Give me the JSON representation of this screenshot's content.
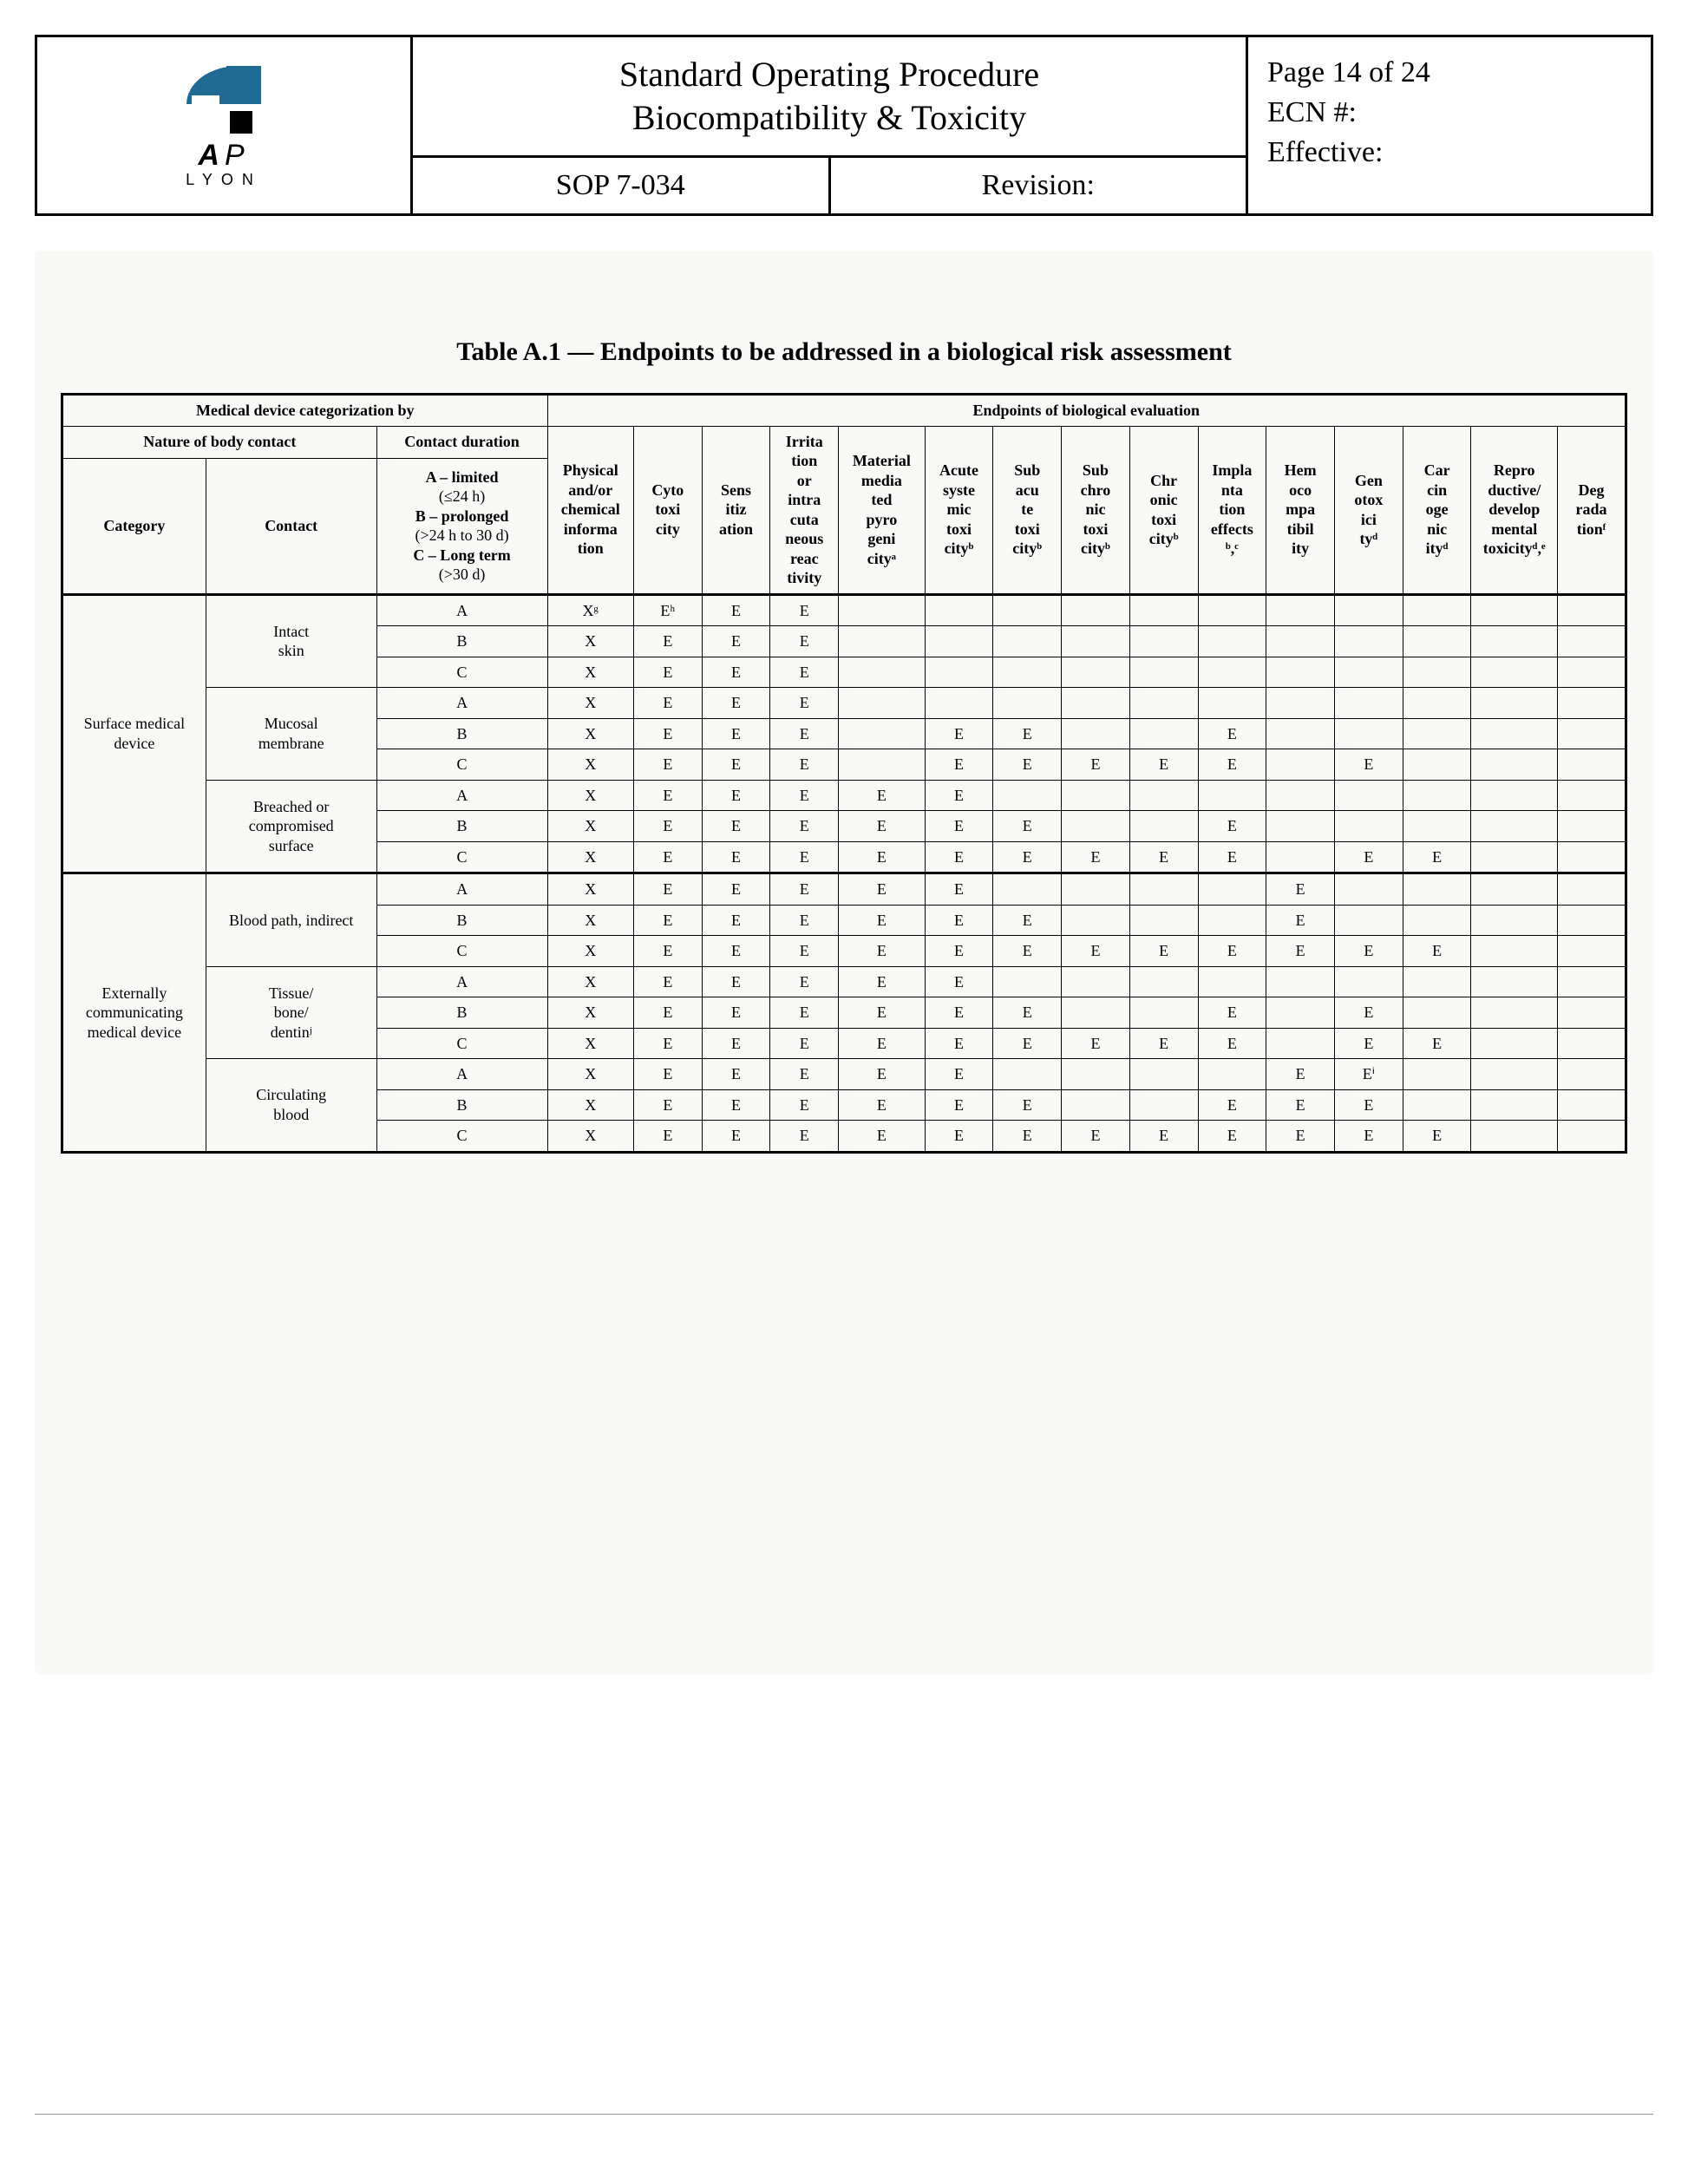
{
  "header": {
    "logo": {
      "ap": "AP",
      "lyon": "LYON"
    },
    "title_line1": "Standard Operating Procedure",
    "title_line2": "Biocompatibility & Toxicity",
    "sop": "SOP 7-034",
    "revision_label": "Revision:",
    "page_label": "Page  14 of 24",
    "ecn_label": "ECN #:",
    "effective_label": "Effective:"
  },
  "table": {
    "title": "Table A.1 — Endpoints to be addressed in a biological risk assessment",
    "head": {
      "medcat": "Medical device categorization by",
      "endpoints": "Endpoints of biological evaluation",
      "nature": "Nature of body contact",
      "duration": "Contact duration",
      "category": "Category",
      "contact": "Contact",
      "dur_a": "A – limited",
      "dur_a_sub": "(≤24 h)",
      "dur_b": "B – prolonged",
      "dur_b_sub": "(>24 h to 30 d)",
      "dur_c": "C – Long term",
      "dur_c_sub": "(>30 d)",
      "ep": [
        "Physical and/or chemical informa tion",
        "Cyto toxi city",
        "Sens itiz ation",
        "Irrita tion or intra cuta neous reac tivity",
        "Material media ted pyro geni cityᵃ",
        "Acute syste mic toxi cityᵇ",
        "Sub acu te toxi cityᵇ",
        "Sub chro nic toxi cityᵇ",
        "Chr onic toxi cityᵇ",
        "Impla nta tion effects ᵇ,ᶜ",
        "Hem oco mpa tibil ity",
        "Gen otox ici tyᵈ",
        "Car cin oge nic ityᵈ",
        "Repro ductive/ develop mental toxicityᵈ,ᵉ",
        "Deg rada tionᶠ"
      ]
    },
    "categories": [
      {
        "name": "Surface medical device",
        "contacts": [
          {
            "name": "Intact skin",
            "rows": [
              {
                "d": "A",
                "v": [
                  "Xᵍ",
                  "Eʰ",
                  "E",
                  "E",
                  "",
                  "",
                  "",
                  "",
                  "",
                  "",
                  "",
                  "",
                  "",
                  "",
                  ""
                ]
              },
              {
                "d": "B",
                "v": [
                  "X",
                  "E",
                  "E",
                  "E",
                  "",
                  "",
                  "",
                  "",
                  "",
                  "",
                  "",
                  "",
                  "",
                  "",
                  ""
                ]
              },
              {
                "d": "C",
                "v": [
                  "X",
                  "E",
                  "E",
                  "E",
                  "",
                  "",
                  "",
                  "",
                  "",
                  "",
                  "",
                  "",
                  "",
                  "",
                  ""
                ]
              }
            ]
          },
          {
            "name": "Mucosal membrane",
            "rows": [
              {
                "d": "A",
                "v": [
                  "X",
                  "E",
                  "E",
                  "E",
                  "",
                  "",
                  "",
                  "",
                  "",
                  "",
                  "",
                  "",
                  "",
                  "",
                  ""
                ]
              },
              {
                "d": "B",
                "v": [
                  "X",
                  "E",
                  "E",
                  "E",
                  "",
                  "E",
                  "E",
                  "",
                  "",
                  "E",
                  "",
                  "",
                  "",
                  "",
                  ""
                ]
              },
              {
                "d": "C",
                "v": [
                  "X",
                  "E",
                  "E",
                  "E",
                  "",
                  "E",
                  "E",
                  "E",
                  "E",
                  "E",
                  "",
                  "E",
                  "",
                  "",
                  ""
                ]
              }
            ]
          },
          {
            "name": "Breached or compromised surface",
            "rows": [
              {
                "d": "A",
                "v": [
                  "X",
                  "E",
                  "E",
                  "E",
                  "E",
                  "E",
                  "",
                  "",
                  "",
                  "",
                  "",
                  "",
                  "",
                  "",
                  ""
                ]
              },
              {
                "d": "B",
                "v": [
                  "X",
                  "E",
                  "E",
                  "E",
                  "E",
                  "E",
                  "E",
                  "",
                  "",
                  "E",
                  "",
                  "",
                  "",
                  "",
                  ""
                ]
              },
              {
                "d": "C",
                "v": [
                  "X",
                  "E",
                  "E",
                  "E",
                  "E",
                  "E",
                  "E",
                  "E",
                  "E",
                  "E",
                  "",
                  "E",
                  "E",
                  "",
                  ""
                ]
              }
            ]
          }
        ]
      },
      {
        "name": "Externally communicating medical device",
        "contacts": [
          {
            "name": "Blood path, indirect",
            "rows": [
              {
                "d": "A",
                "v": [
                  "X",
                  "E",
                  "E",
                  "E",
                  "E",
                  "E",
                  "",
                  "",
                  "",
                  "",
                  "E",
                  "",
                  "",
                  "",
                  ""
                ]
              },
              {
                "d": "B",
                "v": [
                  "X",
                  "E",
                  "E",
                  "E",
                  "E",
                  "E",
                  "E",
                  "",
                  "",
                  "",
                  "E",
                  "",
                  "",
                  "",
                  ""
                ]
              },
              {
                "d": "C",
                "v": [
                  "X",
                  "E",
                  "E",
                  "E",
                  "E",
                  "E",
                  "E",
                  "E",
                  "E",
                  "E",
                  "E",
                  "E",
                  "E",
                  "",
                  ""
                ]
              }
            ]
          },
          {
            "name": "Tissue/ bone/ dentinʲ",
            "rows": [
              {
                "d": "A",
                "v": [
                  "X",
                  "E",
                  "E",
                  "E",
                  "E",
                  "E",
                  "",
                  "",
                  "",
                  "",
                  "",
                  "",
                  "",
                  "",
                  ""
                ]
              },
              {
                "d": "B",
                "v": [
                  "X",
                  "E",
                  "E",
                  "E",
                  "E",
                  "E",
                  "E",
                  "",
                  "",
                  "E",
                  "",
                  "E",
                  "",
                  "",
                  ""
                ]
              },
              {
                "d": "C",
                "v": [
                  "X",
                  "E",
                  "E",
                  "E",
                  "E",
                  "E",
                  "E",
                  "E",
                  "E",
                  "E",
                  "",
                  "E",
                  "E",
                  "",
                  ""
                ]
              }
            ]
          },
          {
            "name": "Circulating blood",
            "rows": [
              {
                "d": "A",
                "v": [
                  "X",
                  "E",
                  "E",
                  "E",
                  "E",
                  "E",
                  "",
                  "",
                  "",
                  "",
                  "E",
                  "Eⁱ",
                  "",
                  "",
                  ""
                ]
              },
              {
                "d": "B",
                "v": [
                  "X",
                  "E",
                  "E",
                  "E",
                  "E",
                  "E",
                  "E",
                  "",
                  "",
                  "E",
                  "E",
                  "E",
                  "",
                  "",
                  ""
                ]
              },
              {
                "d": "C",
                "v": [
                  "X",
                  "E",
                  "E",
                  "E",
                  "E",
                  "E",
                  "E",
                  "E",
                  "E",
                  "E",
                  "E",
                  "E",
                  "E",
                  "",
                  ""
                ]
              }
            ]
          }
        ]
      }
    ]
  }
}
